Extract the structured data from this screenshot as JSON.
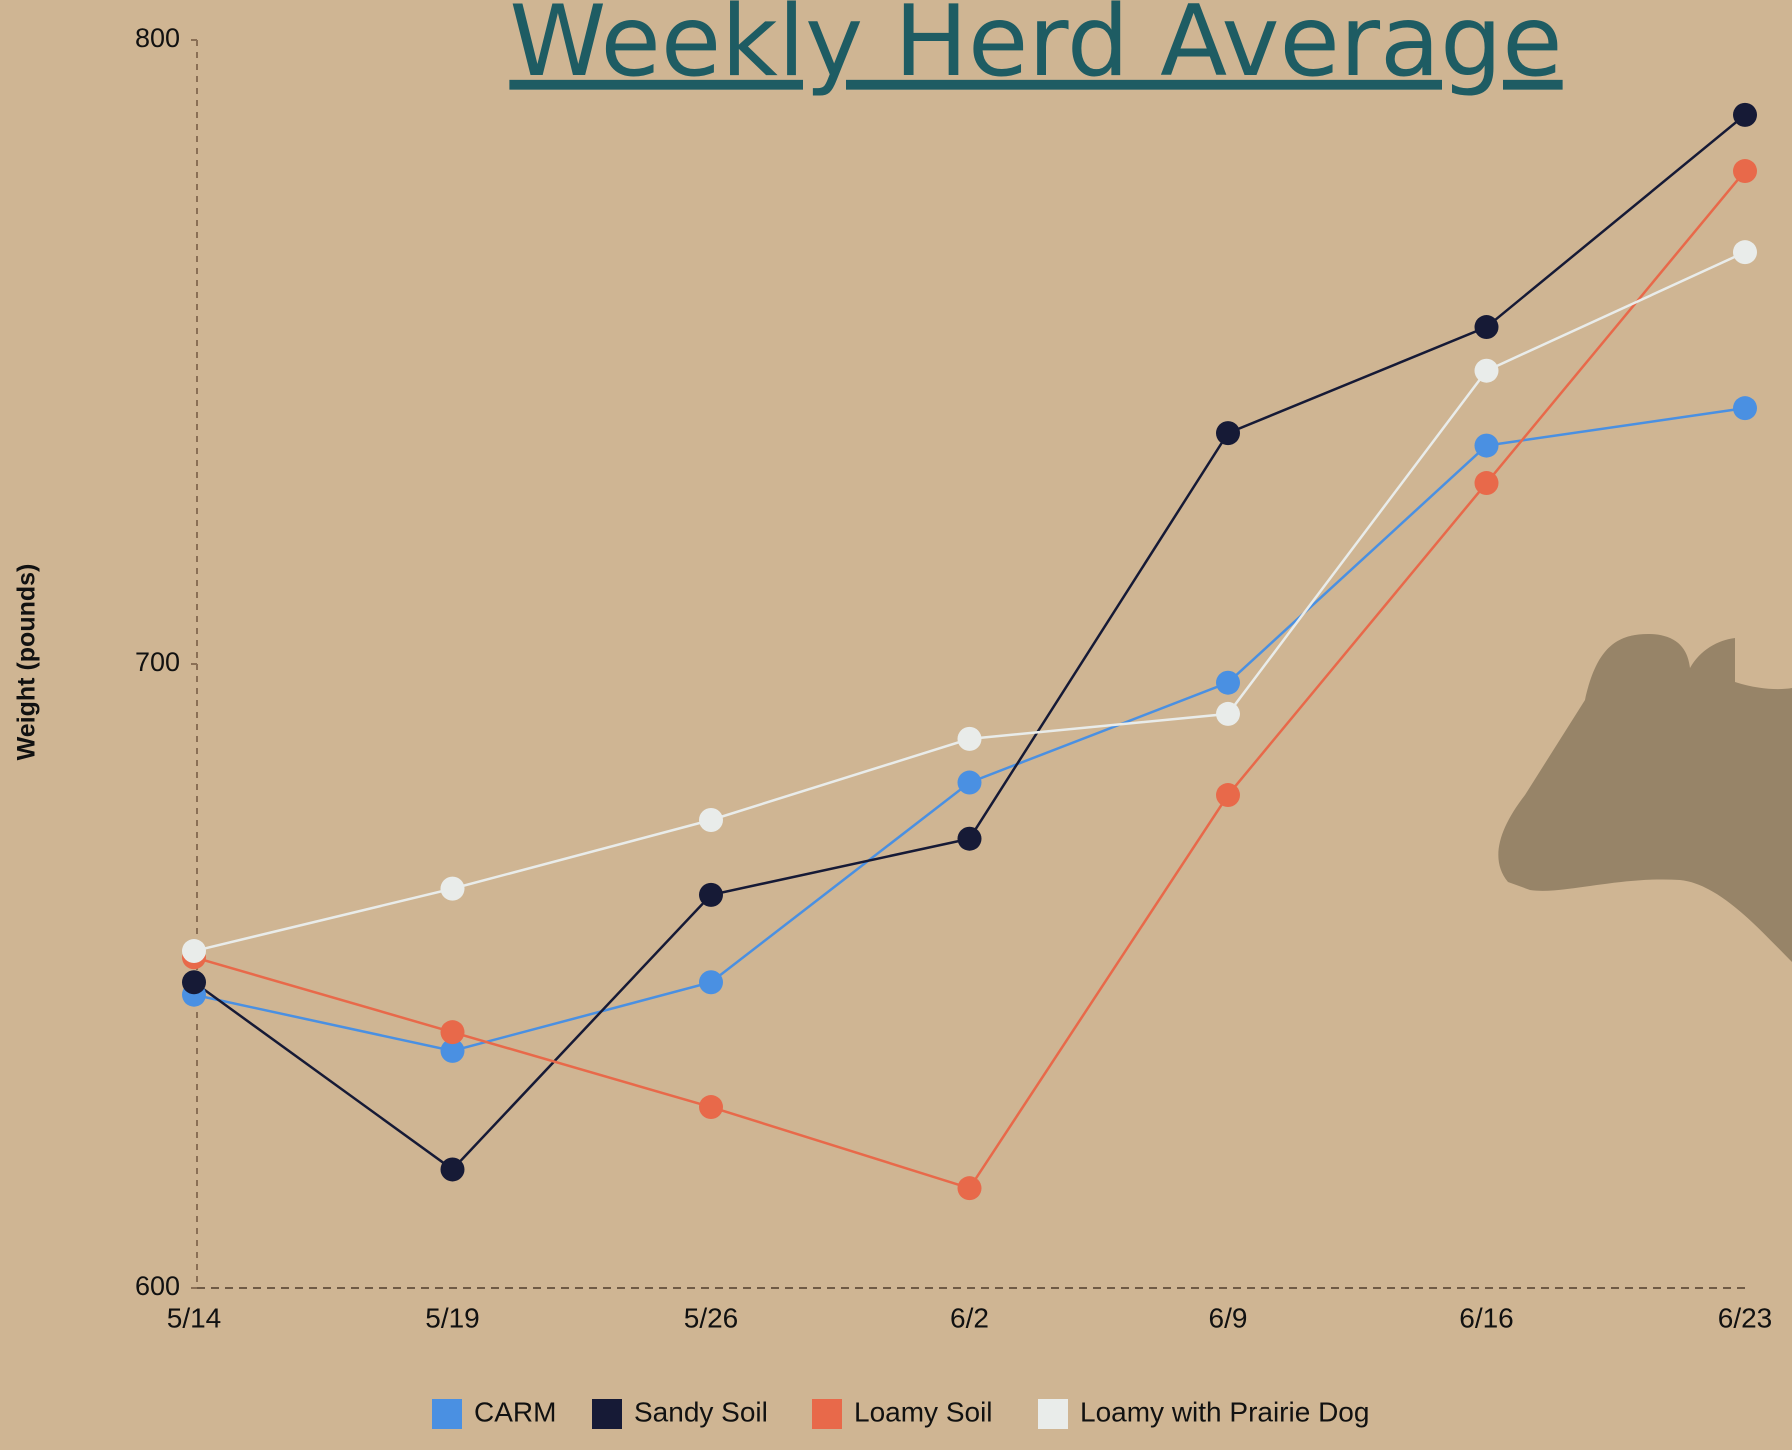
{
  "chart_data": {
    "type": "line",
    "title": "Weekly Herd Average",
    "y_label": "Weight (pounds)",
    "categories": [
      "5/14",
      "5/19",
      "5/26",
      "6/2",
      "6/9",
      "6/16",
      "6/23"
    ],
    "series": [
      {
        "name": "CARM",
        "color": "#4a90e2",
        "values": [
          647,
          638,
          649,
          681,
          697,
          735,
          741
        ]
      },
      {
        "name": "Sandy Soil",
        "color": "#161a36",
        "values": [
          649,
          619,
          663,
          672,
          737,
          754,
          788
        ]
      },
      {
        "name": "Loamy Soil",
        "color": "#e8694a",
        "values": [
          653,
          641,
          629,
          616,
          679,
          729,
          779
        ]
      },
      {
        "name": "Loamy with Prairie Dog",
        "color": "#e9ecea",
        "values": [
          654,
          664,
          675,
          688,
          692,
          747,
          766
        ]
      }
    ],
    "ylim": [
      600,
      800
    ],
    "yticks": [
      600,
      700,
      800
    ]
  }
}
